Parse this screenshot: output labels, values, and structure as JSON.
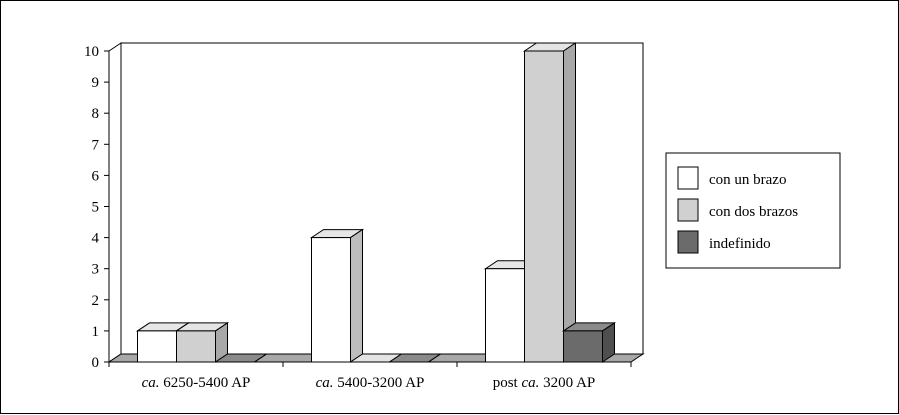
{
  "chart_data": {
    "type": "bar",
    "categories": [
      {
        "prefix": "ca.",
        "rest": " 6250-5400 AP",
        "prefix_italic": true,
        "pre": ""
      },
      {
        "prefix": "ca.",
        "rest": " 5400-3200 AP",
        "prefix_italic": true,
        "pre": ""
      },
      {
        "pre": "post ",
        "prefix": "ca.",
        "rest": " 3200 AP",
        "prefix_italic": true
      }
    ],
    "series": [
      {
        "name": "con un brazo",
        "values": [
          1,
          4,
          3
        ],
        "color": "#ffffff",
        "side": "#bdbdbd",
        "top": "#e6e6e6"
      },
      {
        "name": "con dos brazos",
        "values": [
          1,
          0,
          10
        ],
        "color": "#d0d0d0",
        "side": "#a8a8a8",
        "top": "#e4e4e4"
      },
      {
        "name": "indefinido",
        "values": [
          0,
          0,
          1
        ],
        "color": "#6b6b6b",
        "side": "#4f4f4f",
        "top": "#8a8a8a"
      }
    ],
    "yticks": [
      0,
      1,
      2,
      3,
      4,
      5,
      6,
      7,
      8,
      9,
      10
    ],
    "ylim": [
      0,
      10
    ],
    "legend_position": "right",
    "grid": false,
    "three_d": true
  }
}
